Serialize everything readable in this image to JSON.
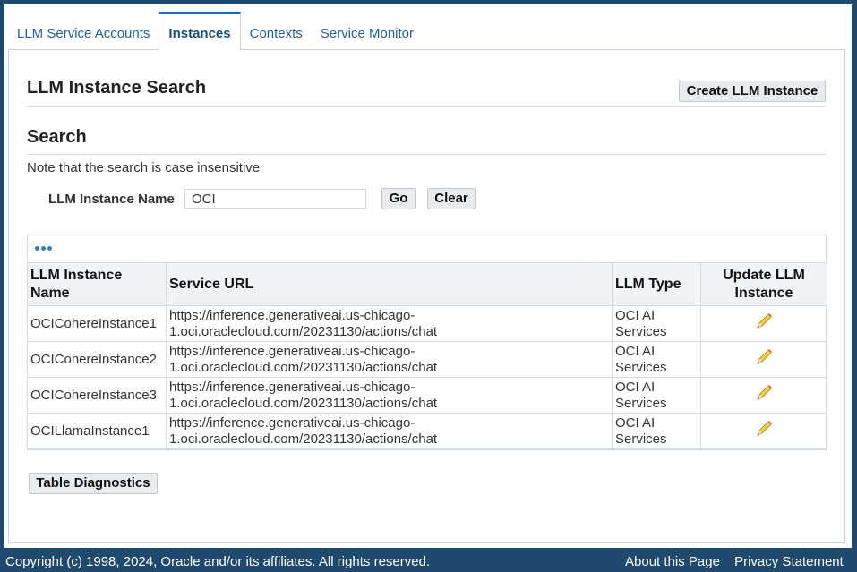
{
  "tabs": [
    {
      "label": "LLM Service Accounts",
      "active": false
    },
    {
      "label": "Instances",
      "active": true
    },
    {
      "label": "Contexts",
      "active": false
    },
    {
      "label": "Service Monitor",
      "active": false
    }
  ],
  "page_title": "LLM Instance Search",
  "create_button": "Create LLM Instance",
  "search": {
    "heading": "Search",
    "note": "Note that the search is case insensitive",
    "field_label": "LLM Instance Name",
    "field_value": "OCI",
    "go_label": "Go",
    "clear_label": "Clear"
  },
  "table": {
    "toolbar_icon": "more-options-icon",
    "columns": [
      "LLM Instance Name",
      "Service URL",
      "LLM Type",
      "Update LLM Instance"
    ],
    "rows": [
      {
        "name": "OCICohereInstance1",
        "url": "https://inference.generativeai.us-chicago-1.oci.oraclecloud.com/20231130/actions/chat",
        "type": "OCI AI Services",
        "update_icon": "pencil-icon"
      },
      {
        "name": "OCICohereInstance2",
        "url": "https://inference.generativeai.us-chicago-1.oci.oraclecloud.com/20231130/actions/chat",
        "type": "OCI AI Services",
        "update_icon": "pencil-icon"
      },
      {
        "name": "OCICohereInstance3",
        "url": "https://inference.generativeai.us-chicago-1.oci.oraclecloud.com/20231130/actions/chat",
        "type": "OCI AI Services",
        "update_icon": "pencil-icon"
      },
      {
        "name": "OCILlamaInstance1",
        "url": "https://inference.generativeai.us-chicago-1.oci.oraclecloud.com/20231130/actions/chat",
        "type": "OCI AI Services",
        "update_icon": "pencil-icon"
      }
    ]
  },
  "diagnostics_button": "Table Diagnostics",
  "footer": {
    "copyright": "Copyright (c) 1998, 2024, Oracle and/or its affiliates. All rights reserved.",
    "about": "About this Page",
    "privacy": "Privacy Statement"
  },
  "colors": {
    "frame": "#1f4a6e",
    "accent": "#1570c7",
    "link": "#1e5f9e"
  }
}
